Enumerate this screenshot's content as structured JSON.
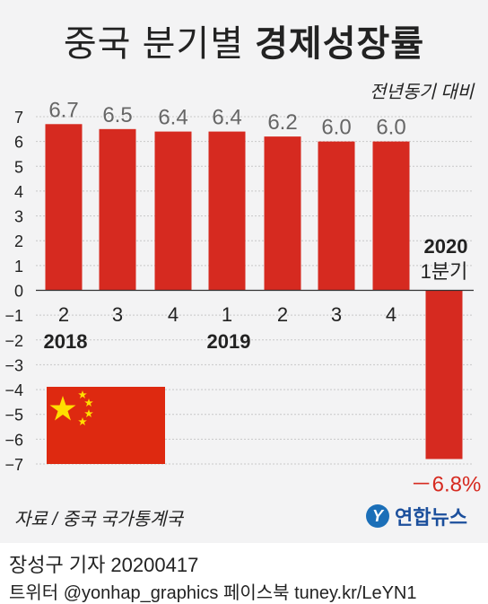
{
  "header": {
    "title_light": "중국 분기별",
    "title_bold": "경제성장률",
    "subtitle": "전년동기 대비"
  },
  "chart_data": {
    "type": "bar",
    "categories": [
      "2",
      "3",
      "4",
      "1",
      "2",
      "3",
      "4",
      "1분기"
    ],
    "year_labels": [
      {
        "text": "2018",
        "category_index": 0
      },
      {
        "text": "2019",
        "category_index": 3
      },
      {
        "text": "2020",
        "category_index": 7
      }
    ],
    "values": [
      6.7,
      6.5,
      6.4,
      6.4,
      6.2,
      6.0,
      6.0,
      -6.8
    ],
    "value_labels": [
      "6.7",
      "6.5",
      "6.4",
      "6.4",
      "6.2",
      "6.0",
      "6.0",
      "－6.8%"
    ],
    "ylim": [
      -7,
      7
    ],
    "yticks": [
      "−7",
      "−6",
      "−5",
      "−4",
      "−3",
      "−2",
      "−1",
      "0",
      "1",
      "2",
      "3",
      "4",
      "5",
      "6",
      "7"
    ],
    "ytick_values": [
      -7,
      -6,
      -5,
      -4,
      -3,
      -2,
      -1,
      0,
      1,
      2,
      3,
      4,
      5,
      6,
      7
    ],
    "grid": true,
    "bar_color": "#d62a20",
    "positive_label_color": "#666666",
    "negative_label_color": "#d62a20"
  },
  "footer": {
    "source": "자료 / 중국 국가통계국",
    "logo_text": "연합뉴스",
    "logo_mark": "Y",
    "byline": "장성구 기자  20200417",
    "social": "트위터 @yonhap_graphics  페이스북 tuney.kr/LeYN1"
  },
  "flag": {
    "colors": {
      "field": "#de2910",
      "star": "#ffde00"
    }
  }
}
